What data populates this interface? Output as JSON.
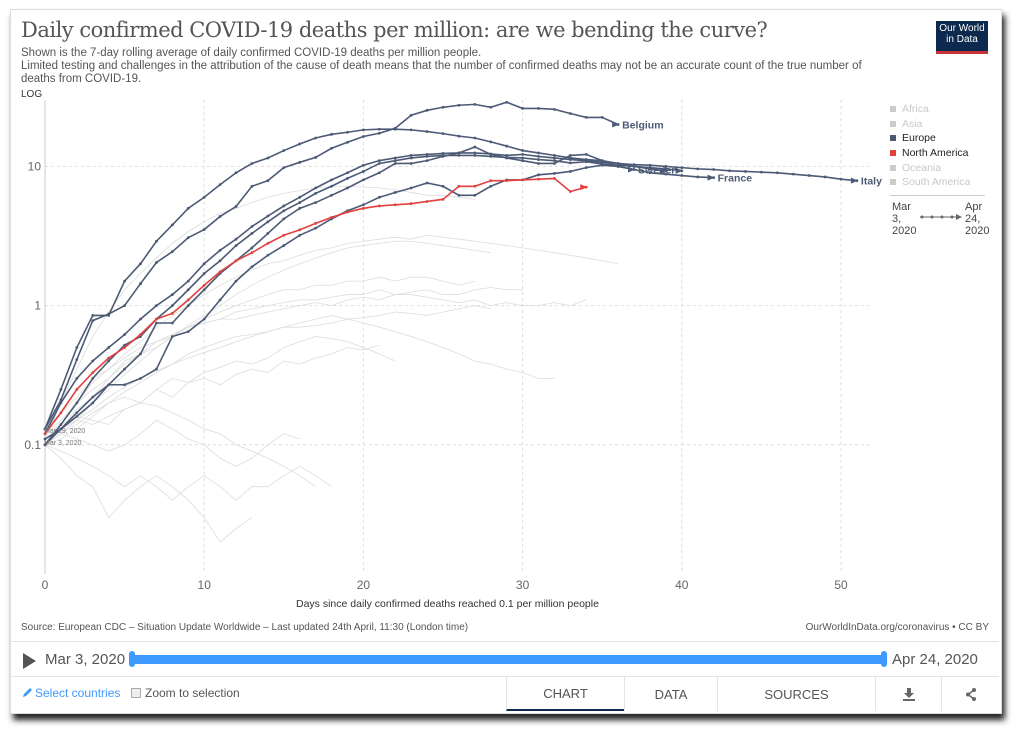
{
  "header": {
    "title": "Daily confirmed COVID-19 deaths per million: are we bending the curve?",
    "subtitle_1": "Shown is the 7-day rolling average of daily confirmed COVID-19 deaths per million people.",
    "subtitle_2": "Limited testing and challenges in the attribution of the cause of death means that the number of confirmed deaths may not be an accurate count of the true number of deaths from COVID-19.",
    "logo": "Our World in Data",
    "scale_toggle": "LOG"
  },
  "legend": {
    "items": [
      {
        "label": "Africa",
        "color": "#cccccc",
        "text_color": "#c8c8c8"
      },
      {
        "label": "Asia",
        "color": "#cccccc",
        "text_color": "#c8c8c8"
      },
      {
        "label": "Europe",
        "color": "#4c5a75",
        "text_color": "#222222"
      },
      {
        "label": "North America",
        "color": "#e3413f",
        "text_color": "#222222"
      },
      {
        "label": "Oceania",
        "color": "#cccccc",
        "text_color": "#c8c8c8"
      },
      {
        "label": "South America",
        "color": "#cccccc",
        "text_color": "#c8c8c8"
      }
    ],
    "range_start": "Mar 3, 2020",
    "range_end": "Apr 24, 2020"
  },
  "chart_data": {
    "type": "line",
    "xlabel": "Days since daily confirmed deaths reached 0.1 per million people",
    "ylabel": "",
    "yscale": "log",
    "xlim": [
      0,
      52
    ],
    "ylim": [
      0.01,
      30
    ],
    "xticks": [
      0,
      10,
      20,
      30,
      40,
      50
    ],
    "yticks": [
      {
        "v": 0.1,
        "label": "0.1"
      },
      {
        "v": 1,
        "label": "1"
      },
      {
        "v": 10,
        "label": "10"
      }
    ],
    "grid": true,
    "start_annotations": [
      "Mar 19, 2020",
      "Mar 3, 2020"
    ],
    "colors": {
      "europe": "#4c5a75",
      "north_america": "#e3413f",
      "other": "#dcdcdc"
    },
    "highlighted_series": [
      {
        "name": "Belgium",
        "group": "europe",
        "values": [
          0.13,
          0.21,
          0.41,
          0.78,
          0.87,
          1.0,
          1.44,
          2.04,
          2.44,
          3.08,
          3.52,
          4.37,
          5.15,
          7.2,
          7.9,
          9.8,
          10.7,
          11.6,
          13.5,
          14.9,
          16.4,
          17.3,
          18.8,
          23.3,
          25.3,
          26.6,
          27.5,
          27.9,
          26.6,
          28.9,
          26.1,
          26.1,
          25.7,
          24.0,
          22.5,
          22.5,
          20.0
        ]
      },
      {
        "name": "Italy",
        "group": "europe",
        "values": [
          0.12,
          0.2,
          0.3,
          0.4,
          0.5,
          0.62,
          0.8,
          1.0,
          1.2,
          1.5,
          2.0,
          2.5,
          3,
          3.7,
          4.4,
          5.2,
          6,
          7,
          8,
          9,
          10.2,
          11,
          11.5,
          12,
          12.2,
          12.4,
          12.5,
          12.5,
          12.3,
          12,
          12.2,
          11.8,
          11.5,
          11.2,
          11,
          10.7,
          10.5,
          10.3,
          10.2,
          10,
          9.8,
          9.6,
          9.5,
          9.3,
          9.2,
          9.1,
          9,
          8.8,
          8.6,
          8.4,
          8.1,
          7.9
        ]
      },
      {
        "name": "France",
        "group": "europe",
        "values": [
          0.11,
          0.13,
          0.17,
          0.22,
          0.27,
          0.35,
          0.45,
          0.75,
          0.75,
          1.0,
          1.3,
          1.7,
          2.1,
          2.6,
          3.3,
          4.2,
          5,
          5.5,
          6.2,
          7,
          8,
          9,
          10.5,
          10.5,
          11,
          11.8,
          12.5,
          13.8,
          12.2,
          11.5,
          11,
          10.5,
          10.5,
          12,
          12.2,
          11,
          10,
          9.5,
          9,
          8.8,
          8.6,
          8.4,
          8.3
        ]
      },
      {
        "name": "Sweden",
        "group": "europe",
        "values": [
          0.1,
          0.13,
          0.16,
          0.2,
          0.27,
          0.27,
          0.3,
          0.35,
          0.6,
          0.65,
          0.8,
          1.1,
          1.5,
          1.9,
          2.3,
          2.7,
          3.2,
          3.6,
          4.2,
          4.8,
          5.3,
          6.0,
          6.5,
          7.0,
          7.6,
          7.2,
          6.2,
          6.2,
          7.2,
          8,
          8,
          8.7,
          8.9,
          9.2,
          9.8,
          10.2,
          10,
          9.5
        ]
      },
      {
        "name": "",
        "group": "europe",
        "values": [
          0.13,
          0.25,
          0.5,
          0.85,
          0.85,
          1.5,
          2.0,
          2.9,
          3.8,
          5,
          6,
          7.4,
          9,
          10.5,
          11.5,
          13,
          14.5,
          16,
          17,
          17.6,
          18.3,
          18.5,
          18.5,
          18.3,
          17.8,
          17.2,
          16.5,
          16,
          15,
          14,
          13,
          12.5,
          12,
          11.5,
          11.2,
          11,
          10.5,
          10,
          9.6,
          9.3
        ]
      },
      {
        "name": "",
        "group": "europe",
        "values": [
          0.1,
          0.14,
          0.2,
          0.3,
          0.4,
          0.52,
          0.6,
          0.8,
          1.0,
          1.3,
          1.7,
          2.1,
          2.7,
          3.3,
          4,
          4.8,
          5.5,
          6.4,
          7.2,
          8.2,
          9.2,
          10.5,
          11,
          11.5,
          11.8,
          12,
          12,
          12,
          11.8,
          11.6,
          11.5,
          11.2,
          11,
          10.6,
          10.8,
          10.4,
          10.2,
          10,
          9.8,
          9.6,
          9.3
        ]
      },
      {
        "name": "",
        "group": "north_america",
        "values": [
          0.12,
          0.17,
          0.25,
          0.33,
          0.42,
          0.5,
          0.62,
          0.8,
          0.88,
          1.1,
          1.4,
          1.75,
          2.1,
          2.4,
          2.8,
          3.2,
          3.5,
          3.9,
          4.3,
          4.7,
          5,
          5.2,
          5.3,
          5.4,
          5.6,
          5.8,
          7.2,
          7.2,
          7.9,
          7.9,
          8.0,
          8.1,
          8.2,
          6.6,
          7.1
        ]
      }
    ],
    "background_series": [
      [
        0.12,
        0.15,
        0.2,
        0.25,
        0.3,
        0.38,
        0.45,
        0.55,
        0.6,
        0.7,
        0.8,
        0.9,
        1.0,
        1.1,
        1.2,
        1.3,
        1.3,
        1.4,
        1.4,
        1.5,
        1.5,
        1.6,
        1.5,
        1.6,
        1.6,
        1.5,
        1.4,
        1.5
      ],
      [
        0.1,
        0.13,
        0.18,
        0.22,
        0.3,
        0.4,
        0.45,
        0.5,
        0.6,
        0.7,
        0.75,
        0.8,
        0.9,
        0.95,
        1.0,
        1.05,
        1.1,
        1.1,
        1.15,
        1.2,
        1.2,
        1.3,
        1.2,
        1.25,
        1.3,
        1.2,
        1.2,
        1.3,
        1.35,
        1.3,
        1.3
      ],
      [
        0.1,
        0.12,
        0.14,
        0.17,
        0.2,
        0.24,
        0.28,
        0.33,
        0.38,
        0.45,
        0.5,
        0.55,
        0.6,
        0.62,
        0.65,
        0.7,
        0.7,
        0.72,
        0.75,
        0.8,
        0.82,
        0.85,
        0.9,
        0.88,
        0.85,
        0.9,
        0.95,
        1.0,
        0.95
      ],
      [
        0.11,
        0.2,
        0.35,
        0.6,
        0.9,
        1.3,
        1.7,
        2.2,
        2.8,
        3.4,
        4,
        4.6,
        5,
        5.5,
        6,
        6.4,
        6.7,
        7,
        7.2,
        7.2,
        7.1,
        7,
        6.8,
        6.5,
        6.2,
        6.2,
        6.0,
        5.8
      ],
      [
        0.1,
        0.12,
        0.15,
        0.2,
        0.25,
        0.32,
        0.4,
        0.5,
        0.6,
        0.72,
        0.85,
        1.0,
        1.2,
        1.4,
        1.6,
        1.8,
        2.0,
        2.2,
        2.4,
        2.6,
        2.7,
        2.8,
        2.9,
        2.9,
        2.8,
        2.7,
        2.6,
        2.5,
        2.4
      ],
      [
        0.1,
        0.09,
        0.08,
        0.07,
        0.06,
        0.05,
        0.06,
        0.05,
        0.04,
        0.05,
        0.06,
        0.05,
        0.04,
        0.05,
        0.05,
        0.06,
        0.07,
        0.06,
        0.05
      ],
      [
        0.1,
        0.12,
        0.11,
        0.1,
        0.09,
        0.1,
        0.12,
        0.15,
        0.13,
        0.11,
        0.1,
        0.08,
        0.07,
        0.08,
        0.1,
        0.12,
        0.11
      ],
      [
        0.12,
        0.14,
        0.16,
        0.15,
        0.14,
        0.18,
        0.2,
        0.25,
        0.22,
        0.28,
        0.3,
        0.27,
        0.32,
        0.35,
        0.33,
        0.4,
        0.38,
        0.42,
        0.45,
        0.5,
        0.48,
        0.52
      ],
      [
        0.1,
        0.11,
        0.13,
        0.16,
        0.2,
        0.22,
        0.2,
        0.25,
        0.3,
        0.28,
        0.33,
        0.36,
        0.4,
        0.38,
        0.42,
        0.5,
        0.55,
        0.6,
        0.58,
        0.55,
        0.5,
        0.45,
        0.4
      ],
      [
        0.13,
        0.17,
        0.22,
        0.3,
        0.35,
        0.42,
        0.5,
        0.55,
        0.62,
        0.7,
        0.75,
        0.8,
        0.8,
        0.85,
        0.9,
        0.95,
        1.0,
        1.05,
        1.0,
        1.1,
        1.15,
        1.1,
        1.2,
        1.2,
        1.15,
        1.1,
        1.05,
        1.1,
        1.0,
        1.05,
        1.0,
        1.0,
        1.05,
        1.0,
        1.1
      ],
      [
        0.1,
        0.08,
        0.06,
        0.05,
        0.03,
        0.04,
        0.05,
        0.06,
        0.05,
        0.04,
        0.03,
        0.02,
        0.025,
        0.03
      ],
      [
        0.1,
        0.14,
        0.2,
        0.28,
        0.35,
        0.45,
        0.55,
        0.7,
        0.85,
        1.0,
        1.2,
        1.4,
        1.6,
        1.8,
        2.0,
        2.1,
        2.3,
        2.5,
        2.6,
        2.8,
        2.9,
        3.0,
        3.1,
        3.0,
        3.2,
        3.1,
        3.0,
        2.9,
        2.8,
        2.7,
        2.6,
        2.5,
        2.4,
        2.3,
        2.2,
        2.1,
        2.0
      ],
      [
        0.11,
        0.13,
        0.15,
        0.14,
        0.16,
        0.18,
        0.2,
        0.19,
        0.17,
        0.15,
        0.13,
        0.12,
        0.1,
        0.09,
        0.08,
        0.07,
        0.06,
        0.05
      ],
      [
        0.1,
        0.12,
        0.15,
        0.18,
        0.22,
        0.26,
        0.3,
        0.34,
        0.38,
        0.42,
        0.46,
        0.5,
        0.55,
        0.6,
        0.65,
        0.7,
        0.75,
        0.8,
        0.85,
        0.8,
        0.75,
        0.7,
        0.65,
        0.6,
        0.55,
        0.5,
        0.45,
        0.4,
        0.38,
        0.35,
        0.33,
        0.3,
        0.3
      ]
    ]
  },
  "footer": {
    "source": "Source: European CDC – Situation Update Worldwide – Last updated 24th April, 11:30 (London time)",
    "credit": "OurWorldInData.org/coronavirus • CC BY"
  },
  "timeline": {
    "start": "Mar 3, 2020",
    "end": "Apr 24, 2020",
    "progress_start": 0,
    "progress_end": 1
  },
  "controls": {
    "select_countries": "Select countries",
    "zoom_to_selection": "Zoom to selection",
    "zoom_checked": false,
    "tabs": [
      {
        "label": "CHART",
        "active": true
      },
      {
        "label": "DATA",
        "active": false
      },
      {
        "label": "SOURCES",
        "active": false
      }
    ]
  },
  "accent_color": "#3f9aff"
}
